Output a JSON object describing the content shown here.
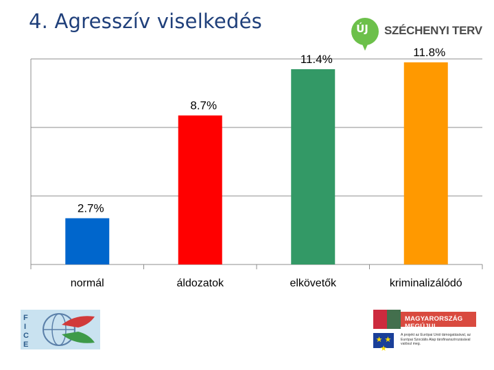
{
  "slide": {
    "title": "4. Agresszív viselkedés"
  },
  "logos": {
    "top_right": {
      "badge": "ÚJ",
      "wordmark": "SZÉCHENYI TERV"
    },
    "bottom_left": {
      "letters": [
        "F",
        "I",
        "C",
        "E"
      ]
    },
    "bottom_right": {
      "stripe": "MAGYARORSZÁG MEGÚJUL",
      "eu_text": "A projekt az Európai Unió támogatásával, az Európai Szociális Alap társfinanszírozásával valósul meg."
    }
  },
  "colors": {
    "title": "#1f3f7a",
    "grid": "#8c8c8c",
    "bars": [
      "#0066cc",
      "#ff0000",
      "#339966",
      "#ff9900"
    ]
  },
  "chart_data": {
    "type": "bar",
    "title": "",
    "categories": [
      "normál",
      "áldozatok",
      "elkövetők",
      "kriminalizálódó"
    ],
    "values": [
      2.7,
      8.7,
      11.4,
      11.8
    ],
    "data_labels": [
      "2.7%",
      "8.7%",
      "11.4%",
      "11.8%"
    ],
    "ylim": [
      0,
      12
    ],
    "gridlines_at": [
      4,
      8,
      12
    ],
    "xlabel": "",
    "ylabel": "",
    "legend": "none"
  }
}
